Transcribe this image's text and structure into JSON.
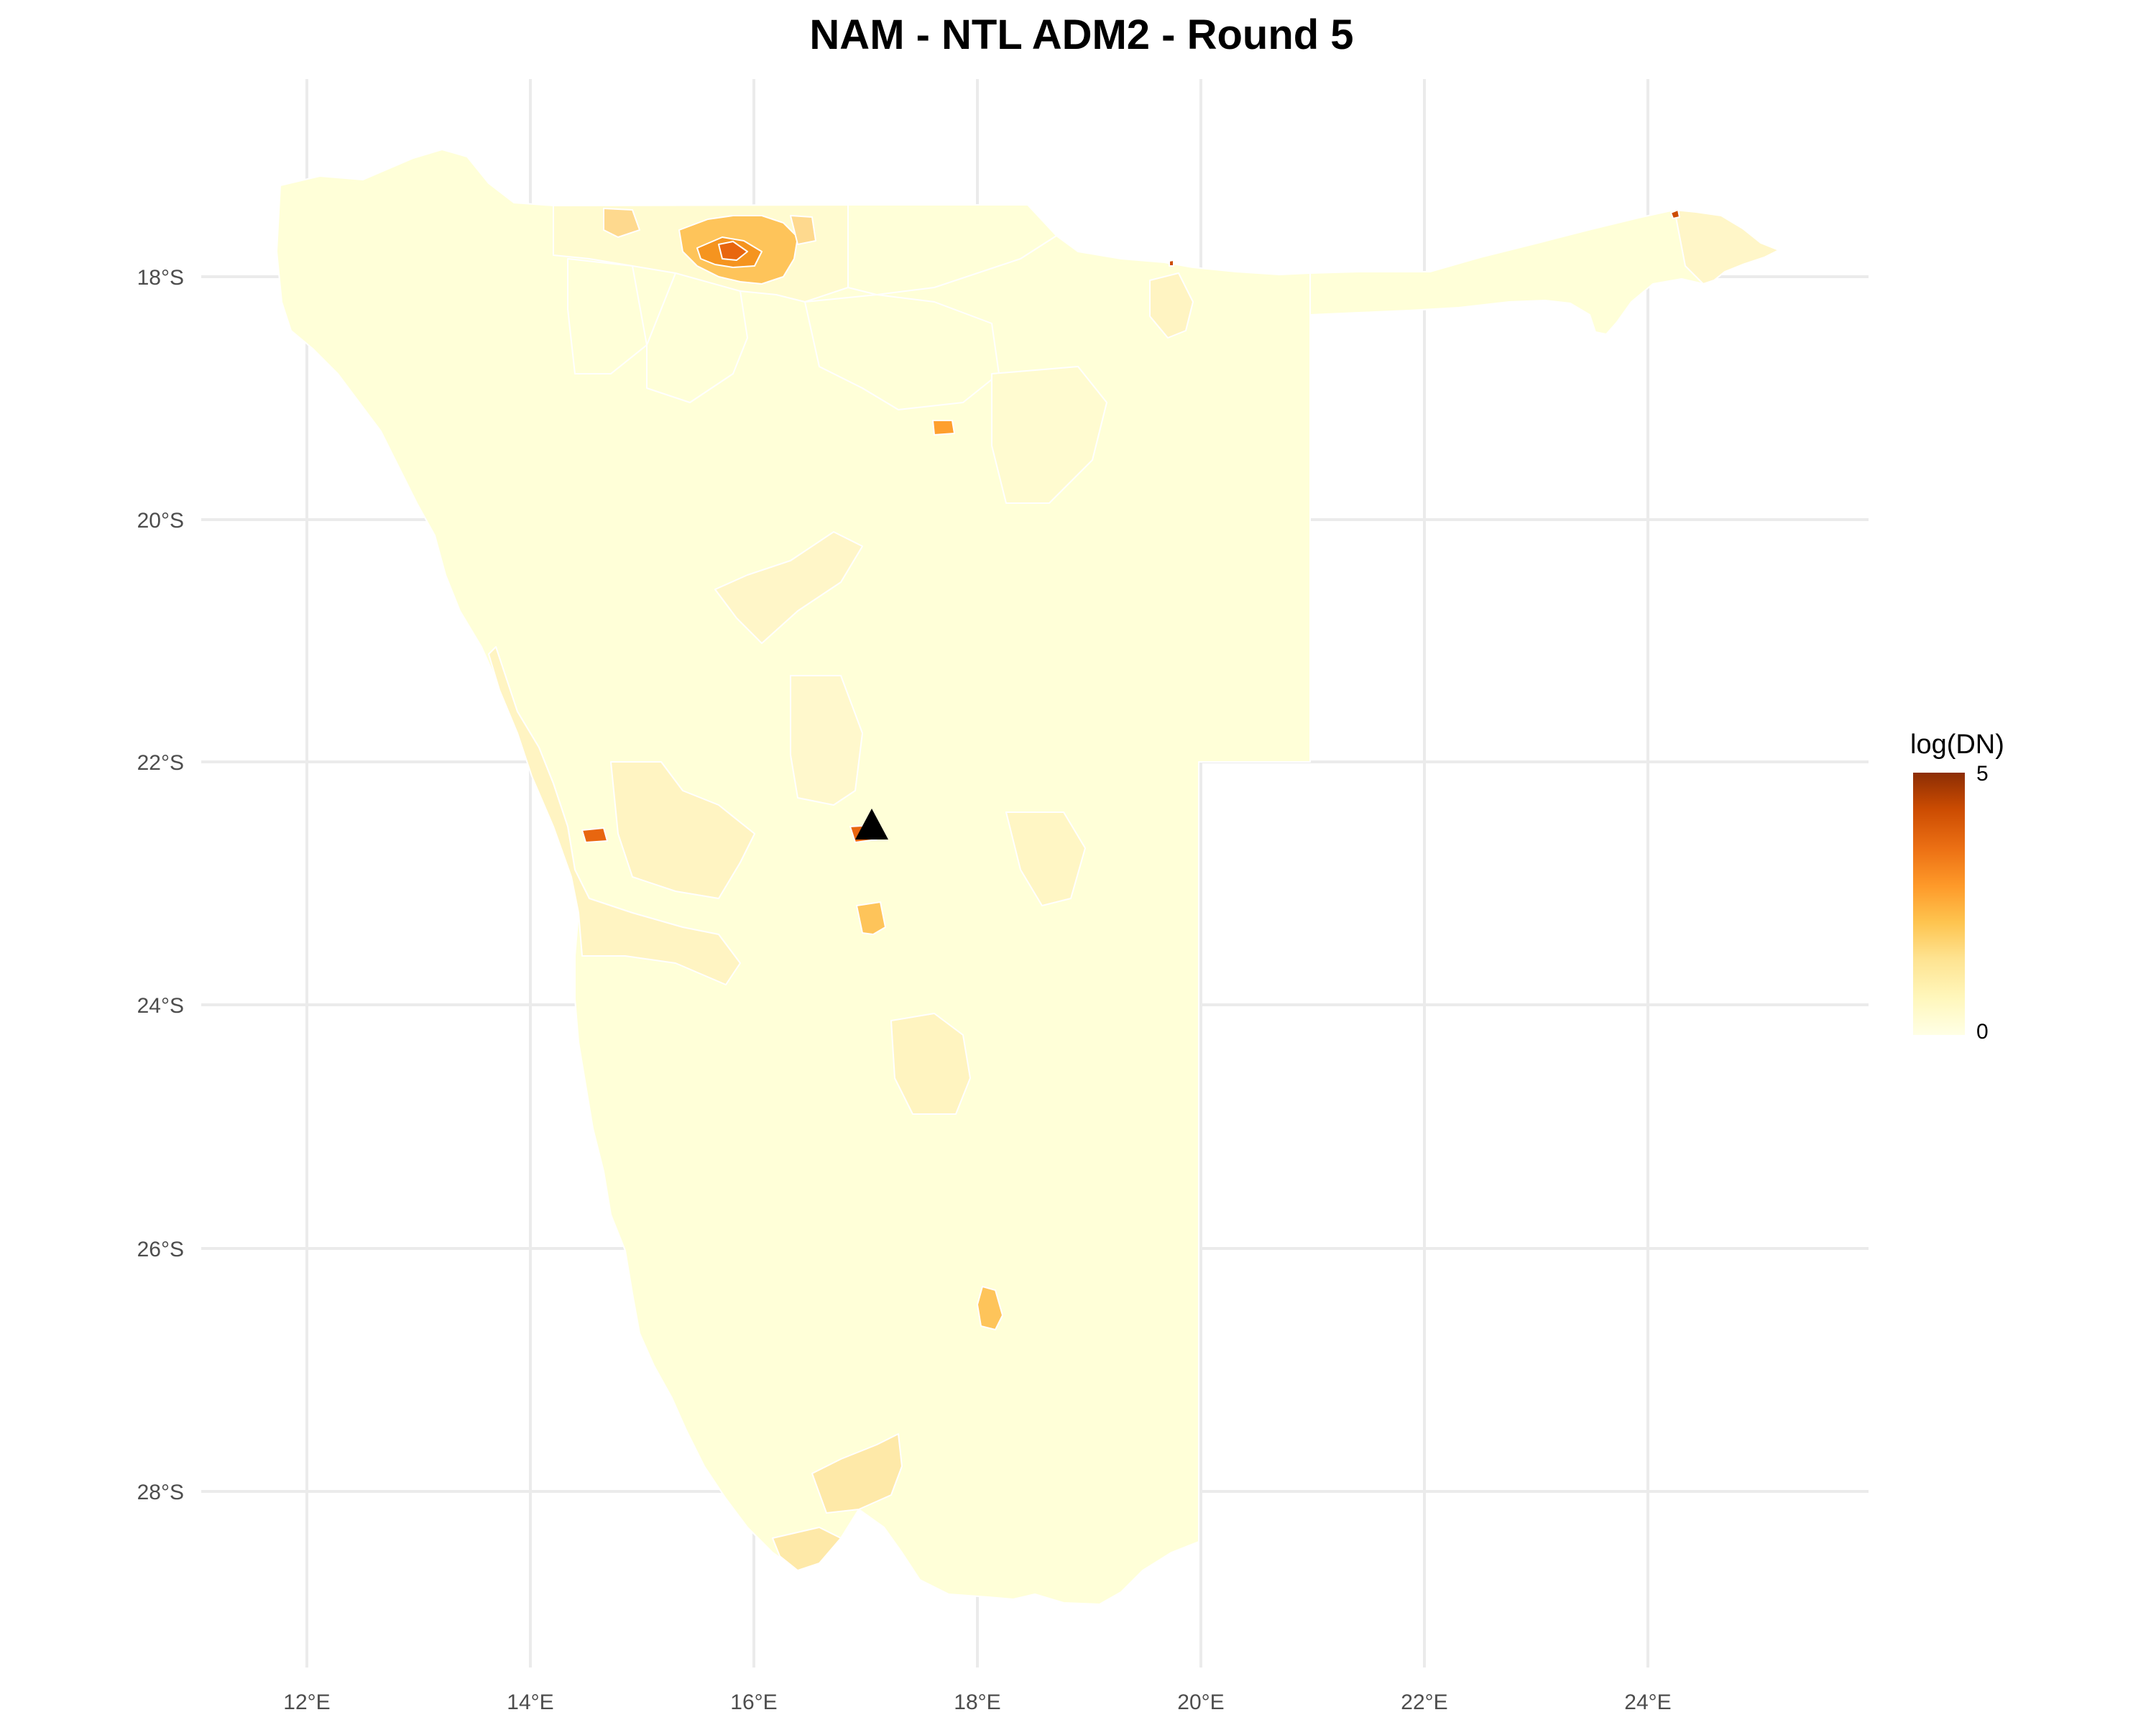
{
  "map": {
    "title": "NAM - NTL ADM2 - Round 5",
    "x_ticks": [
      "12°E",
      "14°E",
      "16°E",
      "18°E",
      "20°E",
      "22°E",
      "24°E"
    ],
    "y_ticks": [
      "18°S",
      "20°S",
      "22°S",
      "24°S",
      "26°S",
      "28°S"
    ],
    "legend": {
      "title": "log(DN)",
      "max_label": "5",
      "min_label": "0",
      "colors": [
        "#ffffe5",
        "#fff7bc",
        "#fee391",
        "#fec44f",
        "#fe9929",
        "#ec7014",
        "#cc4c02",
        "#8c2d04"
      ]
    },
    "colors": {
      "base_fill": "#ffffd8",
      "light_fill": "#fff2c0",
      "mid_fill": "#fed98e",
      "orange_fill": "#fe9f2e",
      "dark_fill": "#e8660f",
      "marker": "#000000"
    },
    "marker_icon": "triangle-marker-icon"
  }
}
